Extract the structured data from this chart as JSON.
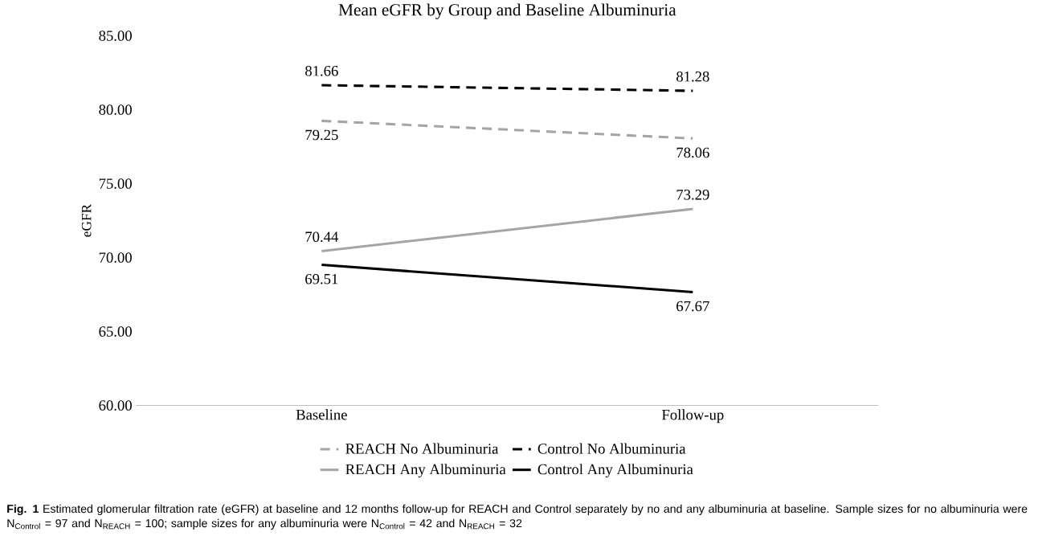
{
  "chart_data": {
    "type": "line",
    "title": "Mean eGFR by Group and Baseline Albuminuria",
    "ylabel": "eGFR",
    "categories": [
      "Baseline",
      "Follow-up"
    ],
    "series": [
      {
        "name": "REACH No Albuminuria",
        "color": "#a5a5a5",
        "line_style": "dashed",
        "values": [
          79.25,
          78.06
        ]
      },
      {
        "name": "Control No Albuminuria",
        "color": "#000000",
        "line_style": "dashed",
        "values": [
          81.66,
          81.28
        ]
      },
      {
        "name": "REACH Any Albuminuria",
        "color": "#a5a5a5",
        "line_style": "solid",
        "values": [
          70.44,
          73.29
        ]
      },
      {
        "name": "Control Any Albuminuria",
        "color": "#000000",
        "line_style": "solid",
        "values": [
          69.51,
          67.67
        ]
      }
    ],
    "ylim": [
      60,
      85
    ],
    "yticks": [
      {
        "value": 60,
        "label": "60.00"
      },
      {
        "value": 65,
        "label": "65.00"
      },
      {
        "value": 70,
        "label": "70.00"
      },
      {
        "value": 75,
        "label": "75.00"
      },
      {
        "value": 80,
        "label": "80.00"
      },
      {
        "value": 85,
        "label": "85.00"
      }
    ],
    "data_labels": true,
    "grid": false,
    "legend": "bottom",
    "marker": "none",
    "annotations": [
      "**Fig. 1** Estimated glomerular filtration rate (eGFR) at baseline and 12 months follow-up for REACH and Control separately by no and any albuminuria at baseline. Sample sizes for no albuminuria were N$_{Control}$ = 97 and N$_{REACH}$ = 100; sample sizes for any albuminuria were N$_{Control}$ = 42 and N$_{REACH}$ = 32"
    ]
  }
}
